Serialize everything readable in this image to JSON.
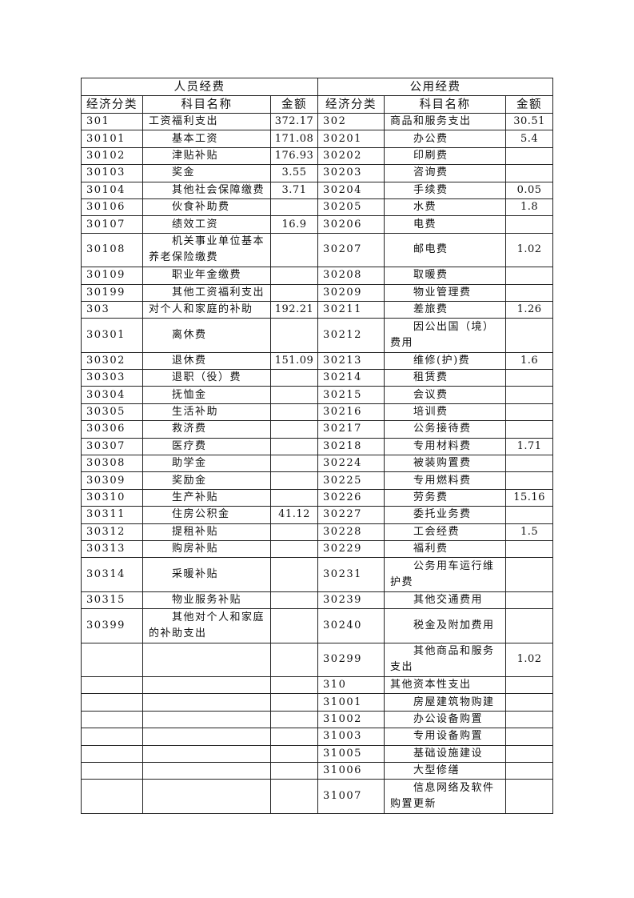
{
  "header": {
    "left_group": "人员经费",
    "right_group": "公用经费",
    "columns": [
      "经济分类",
      "科目名称",
      "金额",
      "经济分类",
      "科目名称",
      "金额"
    ]
  },
  "rows": [
    {
      "tall": false,
      "left": {
        "code": "301",
        "name": "工资福利支出",
        "amount": "372.17"
      },
      "right": {
        "code": "302",
        "name": "商品和服务支出",
        "amount": "30.51"
      }
    },
    {
      "tall": false,
      "left": {
        "code": "30101",
        "name": "　　基本工资",
        "amount": "171.08"
      },
      "right": {
        "code": "30201",
        "name": "　　办公费",
        "amount": "5.4"
      }
    },
    {
      "tall": false,
      "left": {
        "code": "30102",
        "name": "　　津贴补贴",
        "amount": "176.93"
      },
      "right": {
        "code": "30202",
        "name": "　　印刷费",
        "amount": ""
      }
    },
    {
      "tall": false,
      "left": {
        "code": "30103",
        "name": "　　奖金",
        "amount": "3.55"
      },
      "right": {
        "code": "30203",
        "name": "　　咨询费",
        "amount": ""
      }
    },
    {
      "tall": false,
      "left": {
        "code": "30104",
        "name": "　　其他社会保障缴费",
        "amount": "3.71"
      },
      "right": {
        "code": "30204",
        "name": "　　手续费",
        "amount": "0.05"
      }
    },
    {
      "tall": false,
      "left": {
        "code": "30106",
        "name": "　　伙食补助费",
        "amount": ""
      },
      "right": {
        "code": "30205",
        "name": "　　水费",
        "amount": "1.8"
      }
    },
    {
      "tall": false,
      "left": {
        "code": "30107",
        "name": "　　绩效工资",
        "amount": "16.9"
      },
      "right": {
        "code": "30206",
        "name": "　　电费",
        "amount": ""
      }
    },
    {
      "tall": true,
      "left": {
        "code": "30108",
        "name": "　　机关事业单位基本养老保险缴费",
        "amount": ""
      },
      "right": {
        "code": "30207",
        "name": "　　邮电费",
        "amount": "1.02"
      }
    },
    {
      "tall": false,
      "left": {
        "code": "30109",
        "name": "　　职业年金缴费",
        "amount": ""
      },
      "right": {
        "code": "30208",
        "name": "　　取暖费",
        "amount": ""
      }
    },
    {
      "tall": false,
      "left": {
        "code": "30199",
        "name": "　　其他工资福利支出",
        "amount": ""
      },
      "right": {
        "code": "30209",
        "name": "　　物业管理费",
        "amount": ""
      }
    },
    {
      "tall": false,
      "left": {
        "code": "303",
        "name": "对个人和家庭的补助",
        "amount": "192.21"
      },
      "right": {
        "code": "30211",
        "name": "　　差旅费",
        "amount": "1.26"
      }
    },
    {
      "tall": true,
      "left": {
        "code": "30301",
        "name": "　　离休费",
        "amount": ""
      },
      "right": {
        "code": "30212",
        "name": "　　因公出国（境）费用",
        "amount": ""
      }
    },
    {
      "tall": false,
      "left": {
        "code": "30302",
        "name": "　　退休费",
        "amount": "151.09"
      },
      "right": {
        "code": "30213",
        "name": "　　维修(护)费",
        "amount": "1.6"
      }
    },
    {
      "tall": false,
      "left": {
        "code": "30303",
        "name": "　　退职（役）费",
        "amount": ""
      },
      "right": {
        "code": "30214",
        "name": "　　租赁费",
        "amount": ""
      }
    },
    {
      "tall": false,
      "left": {
        "code": "30304",
        "name": "　　抚恤金",
        "amount": ""
      },
      "right": {
        "code": "30215",
        "name": "　　会议费",
        "amount": ""
      }
    },
    {
      "tall": false,
      "left": {
        "code": "30305",
        "name": "　　生活补助",
        "amount": ""
      },
      "right": {
        "code": "30216",
        "name": "　　培训费",
        "amount": ""
      }
    },
    {
      "tall": false,
      "left": {
        "code": "30306",
        "name": "　　救济费",
        "amount": ""
      },
      "right": {
        "code": "30217",
        "name": "　　公务接待费",
        "amount": ""
      }
    },
    {
      "tall": false,
      "left": {
        "code": "30307",
        "name": "　　医疗费",
        "amount": ""
      },
      "right": {
        "code": "30218",
        "name": "　　专用材料费",
        "amount": "1.71"
      }
    },
    {
      "tall": false,
      "left": {
        "code": "30308",
        "name": "　　助学金",
        "amount": ""
      },
      "right": {
        "code": "30224",
        "name": "　　被装购置费",
        "amount": ""
      }
    },
    {
      "tall": false,
      "left": {
        "code": "30309",
        "name": "　　奖励金",
        "amount": ""
      },
      "right": {
        "code": "30225",
        "name": "　　专用燃料费",
        "amount": ""
      }
    },
    {
      "tall": false,
      "left": {
        "code": "30310",
        "name": "　　生产补贴",
        "amount": ""
      },
      "right": {
        "code": "30226",
        "name": "　　劳务费",
        "amount": "15.16"
      }
    },
    {
      "tall": false,
      "left": {
        "code": "30311",
        "name": "　　住房公积金",
        "amount": "41.12"
      },
      "right": {
        "code": "30227",
        "name": "　　委托业务费",
        "amount": ""
      }
    },
    {
      "tall": false,
      "left": {
        "code": "30312",
        "name": "　　提租补贴",
        "amount": ""
      },
      "right": {
        "code": "30228",
        "name": "　　工会经费",
        "amount": "1.5"
      }
    },
    {
      "tall": false,
      "left": {
        "code": "30313",
        "name": "　　购房补贴",
        "amount": ""
      },
      "right": {
        "code": "30229",
        "name": "　　福利费",
        "amount": ""
      }
    },
    {
      "tall": true,
      "left": {
        "code": "30314",
        "name": "　　采暖补贴",
        "amount": ""
      },
      "right": {
        "code": "30231",
        "name": "　　公务用车运行维护费",
        "amount": ""
      }
    },
    {
      "tall": false,
      "left": {
        "code": "30315",
        "name": "　　物业服务补贴",
        "amount": ""
      },
      "right": {
        "code": "30239",
        "name": "　　其他交通费用",
        "amount": ""
      }
    },
    {
      "tall": true,
      "left": {
        "code": "30399",
        "name": "　　其他对个人和家庭的补助支出",
        "amount": ""
      },
      "right": {
        "code": "30240",
        "name": "　　税金及附加费用",
        "amount": ""
      }
    },
    {
      "tall": true,
      "left": {
        "code": "",
        "name": "",
        "amount": ""
      },
      "right": {
        "code": "30299",
        "name": "　　其他商品和服务支出",
        "amount": "1.02"
      }
    },
    {
      "tall": false,
      "left": {
        "code": "",
        "name": "",
        "amount": ""
      },
      "right": {
        "code": "310",
        "name": "其他资本性支出",
        "amount": ""
      }
    },
    {
      "tall": false,
      "left": {
        "code": "",
        "name": "",
        "amount": ""
      },
      "right": {
        "code": "31001",
        "name": "　　房屋建筑物购建",
        "amount": ""
      }
    },
    {
      "tall": false,
      "left": {
        "code": "",
        "name": "",
        "amount": ""
      },
      "right": {
        "code": "31002",
        "name": "　　办公设备购置",
        "amount": ""
      }
    },
    {
      "tall": false,
      "left": {
        "code": "",
        "name": "",
        "amount": ""
      },
      "right": {
        "code": "31003",
        "name": "　　专用设备购置",
        "amount": ""
      }
    },
    {
      "tall": false,
      "left": {
        "code": "",
        "name": "",
        "amount": ""
      },
      "right": {
        "code": "31005",
        "name": "　　基础设施建设",
        "amount": ""
      }
    },
    {
      "tall": false,
      "left": {
        "code": "",
        "name": "",
        "amount": ""
      },
      "right": {
        "code": "31006",
        "name": "　　大型修缮",
        "amount": ""
      }
    },
    {
      "tall": true,
      "left": {
        "code": "",
        "name": "",
        "amount": ""
      },
      "right": {
        "code": "31007",
        "name": "　　信息网络及软件购置更新",
        "amount": ""
      }
    }
  ]
}
